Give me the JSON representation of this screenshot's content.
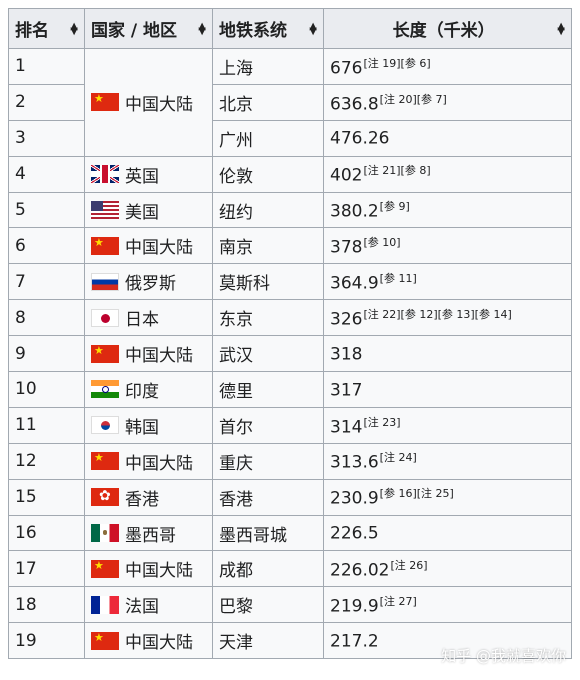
{
  "headers": {
    "rank": "排名",
    "country": "国家 / 地区",
    "system": "地铁系统",
    "length": "长度（千米）"
  },
  "rows": [
    {
      "rank": "1",
      "city": "上海",
      "len": "676",
      "notes": "[注 19][参 6]"
    },
    {
      "rank": "2",
      "city": "北京",
      "len": "636.8",
      "notes": "[注 20][参 7]"
    },
    {
      "rank": "3",
      "city": "广州",
      "len": "476.26",
      "notes": ""
    },
    {
      "rank": "4",
      "country": "英国",
      "flag": "uk-flag",
      "city": "伦敦",
      "len": "402",
      "notes": "[注 21][参 8]"
    },
    {
      "rank": "5",
      "country": "美国",
      "flag": "us-flag",
      "city": "纽约",
      "len": "380.2",
      "notes": "[参 9]"
    },
    {
      "rank": "6",
      "country": "中国大陆",
      "flag": "cn-flag",
      "city": "南京",
      "len": "378",
      "notes": "[参 10]"
    },
    {
      "rank": "7",
      "country": "俄罗斯",
      "flag": "ru-flag",
      "city": "莫斯科",
      "len": "364.9",
      "notes": "[参 11]"
    },
    {
      "rank": "8",
      "country": "日本",
      "flag": "jp-flag",
      "city": "东京",
      "len": "326",
      "notes": "[注 22][参 12][参 13][参 14]"
    },
    {
      "rank": "9",
      "country": "中国大陆",
      "flag": "cn-flag",
      "city": "武汉",
      "len": "318",
      "notes": ""
    },
    {
      "rank": "10",
      "country": "印度",
      "flag": "in-flag",
      "city": "德里",
      "len": "317",
      "notes": ""
    },
    {
      "rank": "11",
      "country": "韩国",
      "flag": "kr-flag",
      "city": "首尔",
      "len": "314",
      "notes": "[注 23]"
    },
    {
      "rank": "12",
      "country": "中国大陆",
      "flag": "cn-flag",
      "city": "重庆",
      "len": "313.6",
      "notes": "[注 24]"
    },
    {
      "rank": "15",
      "country": "香港",
      "flag": "hk-flag",
      "city": "香港",
      "len": "230.9",
      "notes": "[参 16][注 25]"
    },
    {
      "rank": "16",
      "country": "墨西哥",
      "flag": "mx-flag",
      "city": "墨西哥城",
      "len": "226.5",
      "notes": ""
    },
    {
      "rank": "17",
      "country": "中国大陆",
      "flag": "cn-flag",
      "city": "成都",
      "len": "226.02",
      "notes": "[注 26]"
    },
    {
      "rank": "18",
      "country": "法国",
      "flag": "fr-flag",
      "city": "巴黎",
      "len": "219.9",
      "notes": "[注 27]"
    },
    {
      "rank": "19",
      "country": "中国大陆",
      "flag": "cn-flag",
      "city": "天津",
      "len": "217.2",
      "notes": ""
    }
  ],
  "merged_country": {
    "country": "中国大陆",
    "flag": "cn-flag"
  },
  "watermark": "知乎 @我就喜欢你"
}
